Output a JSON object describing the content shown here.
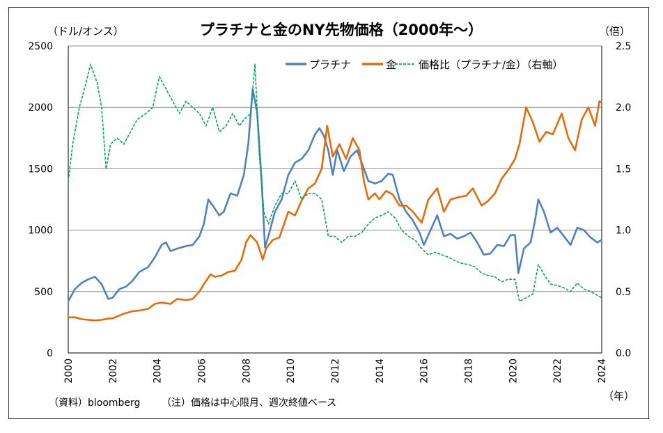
{
  "chart_data": {
    "type": "line",
    "title": "プラチナと金のNY先物価格（2000年～）",
    "left_unit": "（ドル/オンス）",
    "right_unit": "（倍）",
    "x_unit": "（年）",
    "source": "（資料）bloomberg",
    "note": "（注）価格は中心限月、週次終値ベース",
    "xlim": [
      2000,
      2024
    ],
    "x_ticks": [
      "2000",
      "2002",
      "2004",
      "2006",
      "2008",
      "2010",
      "2012",
      "2014",
      "2016",
      "2018",
      "2020",
      "2022",
      "2024"
    ],
    "ylim_left": [
      0,
      2500
    ],
    "y_ticks_left": [
      "0",
      "500",
      "1000",
      "1500",
      "2000",
      "2500"
    ],
    "ylim_right": [
      0,
      2.5
    ],
    "y_ticks_right": [
      "0.0",
      "0.5",
      "1.0",
      "1.5",
      "2.0",
      "2.5"
    ],
    "grid": "horizontal",
    "legend_position": "top-right",
    "series": [
      {
        "name": "プラチナ",
        "axis": "left",
        "color": "#4f81bd",
        "style": "solid",
        "points": [
          [
            2000.0,
            420
          ],
          [
            2000.3,
            520
          ],
          [
            2000.6,
            570
          ],
          [
            2000.9,
            600
          ],
          [
            2001.2,
            620
          ],
          [
            2001.5,
            560
          ],
          [
            2001.8,
            440
          ],
          [
            2002.0,
            450
          ],
          [
            2002.3,
            520
          ],
          [
            2002.6,
            540
          ],
          [
            2002.9,
            590
          ],
          [
            2003.2,
            660
          ],
          [
            2003.6,
            700
          ],
          [
            2003.9,
            780
          ],
          [
            2004.2,
            880
          ],
          [
            2004.4,
            900
          ],
          [
            2004.6,
            830
          ],
          [
            2004.9,
            850
          ],
          [
            2005.3,
            870
          ],
          [
            2005.6,
            880
          ],
          [
            2005.9,
            950
          ],
          [
            2006.1,
            1050
          ],
          [
            2006.3,
            1250
          ],
          [
            2006.5,
            1200
          ],
          [
            2006.8,
            1120
          ],
          [
            2007.0,
            1150
          ],
          [
            2007.3,
            1300
          ],
          [
            2007.6,
            1280
          ],
          [
            2007.9,
            1450
          ],
          [
            2008.1,
            1700
          ],
          [
            2008.3,
            2150
          ],
          [
            2008.5,
            1950
          ],
          [
            2008.7,
            1400
          ],
          [
            2008.85,
            860
          ],
          [
            2009.0,
            950
          ],
          [
            2009.3,
            1150
          ],
          [
            2009.6,
            1250
          ],
          [
            2009.9,
            1450
          ],
          [
            2010.2,
            1550
          ],
          [
            2010.5,
            1580
          ],
          [
            2010.8,
            1650
          ],
          [
            2011.1,
            1780
          ],
          [
            2011.3,
            1830
          ],
          [
            2011.5,
            1770
          ],
          [
            2011.7,
            1650
          ],
          [
            2011.9,
            1450
          ],
          [
            2012.1,
            1650
          ],
          [
            2012.4,
            1480
          ],
          [
            2012.7,
            1600
          ],
          [
            2013.0,
            1650
          ],
          [
            2013.3,
            1500
          ],
          [
            2013.5,
            1400
          ],
          [
            2013.8,
            1380
          ],
          [
            2014.1,
            1400
          ],
          [
            2014.4,
            1460
          ],
          [
            2014.6,
            1450
          ],
          [
            2014.9,
            1250
          ],
          [
            2015.2,
            1150
          ],
          [
            2015.5,
            1080
          ],
          [
            2015.8,
            980
          ],
          [
            2016.0,
            880
          ],
          [
            2016.3,
            1000
          ],
          [
            2016.6,
            1120
          ],
          [
            2016.9,
            950
          ],
          [
            2017.2,
            970
          ],
          [
            2017.5,
            930
          ],
          [
            2017.8,
            950
          ],
          [
            2018.1,
            980
          ],
          [
            2018.4,
            900
          ],
          [
            2018.7,
            800
          ],
          [
            2019.0,
            810
          ],
          [
            2019.3,
            880
          ],
          [
            2019.6,
            870
          ],
          [
            2019.9,
            960
          ],
          [
            2020.1,
            960
          ],
          [
            2020.25,
            650
          ],
          [
            2020.5,
            850
          ],
          [
            2020.8,
            900
          ],
          [
            2021.0,
            1080
          ],
          [
            2021.15,
            1250
          ],
          [
            2021.4,
            1150
          ],
          [
            2021.7,
            980
          ],
          [
            2022.0,
            1020
          ],
          [
            2022.3,
            950
          ],
          [
            2022.6,
            880
          ],
          [
            2022.9,
            1020
          ],
          [
            2023.2,
            1000
          ],
          [
            2023.5,
            940
          ],
          [
            2023.8,
            900
          ],
          [
            2024.0,
            920
          ]
        ]
      },
      {
        "name": "金",
        "axis": "left",
        "color": "#e36c09",
        "style": "solid",
        "points": [
          [
            2000.0,
            290
          ],
          [
            2000.3,
            290
          ],
          [
            2000.6,
            275
          ],
          [
            2000.9,
            270
          ],
          [
            2001.2,
            265
          ],
          [
            2001.5,
            270
          ],
          [
            2001.8,
            280
          ],
          [
            2002.0,
            282
          ],
          [
            2002.5,
            320
          ],
          [
            2002.9,
            340
          ],
          [
            2003.2,
            345
          ],
          [
            2003.6,
            360
          ],
          [
            2003.9,
            400
          ],
          [
            2004.2,
            410
          ],
          [
            2004.6,
            400
          ],
          [
            2004.9,
            440
          ],
          [
            2005.3,
            430
          ],
          [
            2005.6,
            440
          ],
          [
            2005.9,
            500
          ],
          [
            2006.1,
            560
          ],
          [
            2006.4,
            640
          ],
          [
            2006.6,
            620
          ],
          [
            2006.9,
            630
          ],
          [
            2007.2,
            660
          ],
          [
            2007.5,
            670
          ],
          [
            2007.8,
            760
          ],
          [
            2008.0,
            900
          ],
          [
            2008.2,
            960
          ],
          [
            2008.5,
            900
          ],
          [
            2008.75,
            760
          ],
          [
            2008.9,
            850
          ],
          [
            2009.2,
            920
          ],
          [
            2009.5,
            940
          ],
          [
            2009.9,
            1150
          ],
          [
            2010.2,
            1120
          ],
          [
            2010.5,
            1240
          ],
          [
            2010.8,
            1340
          ],
          [
            2011.1,
            1380
          ],
          [
            2011.4,
            1500
          ],
          [
            2011.65,
            1850
          ],
          [
            2011.9,
            1600
          ],
          [
            2012.2,
            1700
          ],
          [
            2012.5,
            1580
          ],
          [
            2012.8,
            1750
          ],
          [
            2013.1,
            1650
          ],
          [
            2013.3,
            1400
          ],
          [
            2013.5,
            1250
          ],
          [
            2013.8,
            1300
          ],
          [
            2014.0,
            1250
          ],
          [
            2014.3,
            1320
          ],
          [
            2014.6,
            1290
          ],
          [
            2014.9,
            1200
          ],
          [
            2015.2,
            1200
          ],
          [
            2015.5,
            1150
          ],
          [
            2015.9,
            1060
          ],
          [
            2016.2,
            1250
          ],
          [
            2016.6,
            1340
          ],
          [
            2016.9,
            1150
          ],
          [
            2017.2,
            1250
          ],
          [
            2017.6,
            1270
          ],
          [
            2017.9,
            1280
          ],
          [
            2018.2,
            1340
          ],
          [
            2018.6,
            1200
          ],
          [
            2018.9,
            1240
          ],
          [
            2019.2,
            1300
          ],
          [
            2019.5,
            1420
          ],
          [
            2019.8,
            1490
          ],
          [
            2020.1,
            1580
          ],
          [
            2020.3,
            1700
          ],
          [
            2020.6,
            2000
          ],
          [
            2020.9,
            1880
          ],
          [
            2021.2,
            1720
          ],
          [
            2021.5,
            1800
          ],
          [
            2021.8,
            1780
          ],
          [
            2022.2,
            1950
          ],
          [
            2022.5,
            1750
          ],
          [
            2022.8,
            1650
          ],
          [
            2023.1,
            1900
          ],
          [
            2023.4,
            2000
          ],
          [
            2023.7,
            1850
          ],
          [
            2023.9,
            2050
          ],
          [
            2024.0,
            2040
          ]
        ]
      },
      {
        "name": "価格比（プラチナ/金）（右軸）",
        "axis": "right",
        "color": "#00a651",
        "style": "dashed",
        "points": [
          [
            2000.0,
            1.4
          ],
          [
            2000.2,
            1.7
          ],
          [
            2000.5,
            2.0
          ],
          [
            2000.8,
            2.2
          ],
          [
            2001.0,
            2.35
          ],
          [
            2001.3,
            2.2
          ],
          [
            2001.5,
            2.0
          ],
          [
            2001.7,
            1.5
          ],
          [
            2001.9,
            1.7
          ],
          [
            2002.2,
            1.75
          ],
          [
            2002.5,
            1.7
          ],
          [
            2002.8,
            1.8
          ],
          [
            2003.1,
            1.9
          ],
          [
            2003.5,
            1.95
          ],
          [
            2003.8,
            2.0
          ],
          [
            2004.1,
            2.25
          ],
          [
            2004.4,
            2.15
          ],
          [
            2004.7,
            2.05
          ],
          [
            2005.0,
            1.95
          ],
          [
            2005.3,
            2.05
          ],
          [
            2005.6,
            2.0
          ],
          [
            2005.9,
            1.95
          ],
          [
            2006.2,
            1.85
          ],
          [
            2006.5,
            2.0
          ],
          [
            2006.8,
            1.8
          ],
          [
            2007.1,
            1.85
          ],
          [
            2007.4,
            1.95
          ],
          [
            2007.7,
            1.85
          ],
          [
            2007.9,
            1.9
          ],
          [
            2008.2,
            1.95
          ],
          [
            2008.4,
            2.35
          ],
          [
            2008.6,
            1.6
          ],
          [
            2008.8,
            1.15
          ],
          [
            2009.0,
            1.05
          ],
          [
            2009.3,
            1.2
          ],
          [
            2009.6,
            1.3
          ],
          [
            2009.9,
            1.3
          ],
          [
            2010.2,
            1.4
          ],
          [
            2010.5,
            1.25
          ],
          [
            2010.8,
            1.3
          ],
          [
            2011.1,
            1.3
          ],
          [
            2011.4,
            1.25
          ],
          [
            2011.7,
            0.95
          ],
          [
            2012.0,
            0.95
          ],
          [
            2012.3,
            0.9
          ],
          [
            2012.6,
            0.95
          ],
          [
            2012.9,
            0.95
          ],
          [
            2013.2,
            0.98
          ],
          [
            2013.5,
            1.05
          ],
          [
            2013.8,
            1.1
          ],
          [
            2014.1,
            1.12
          ],
          [
            2014.4,
            1.15
          ],
          [
            2014.7,
            1.1
          ],
          [
            2015.0,
            1.0
          ],
          [
            2015.3,
            0.95
          ],
          [
            2015.6,
            0.92
          ],
          [
            2015.9,
            0.85
          ],
          [
            2016.2,
            0.8
          ],
          [
            2016.5,
            0.82
          ],
          [
            2016.8,
            0.8
          ],
          [
            2017.1,
            0.78
          ],
          [
            2017.4,
            0.75
          ],
          [
            2017.7,
            0.73
          ],
          [
            2018.0,
            0.72
          ],
          [
            2018.3,
            0.7
          ],
          [
            2018.6,
            0.65
          ],
          [
            2018.9,
            0.63
          ],
          [
            2019.2,
            0.62
          ],
          [
            2019.5,
            0.58
          ],
          [
            2019.8,
            0.6
          ],
          [
            2020.1,
            0.6
          ],
          [
            2020.3,
            0.42
          ],
          [
            2020.6,
            0.45
          ],
          [
            2020.9,
            0.48
          ],
          [
            2021.15,
            0.72
          ],
          [
            2021.4,
            0.64
          ],
          [
            2021.7,
            0.56
          ],
          [
            2022.0,
            0.55
          ],
          [
            2022.3,
            0.53
          ],
          [
            2022.6,
            0.5
          ],
          [
            2022.9,
            0.57
          ],
          [
            2023.2,
            0.52
          ],
          [
            2023.5,
            0.5
          ],
          [
            2023.8,
            0.47
          ],
          [
            2024.0,
            0.45
          ]
        ]
      }
    ]
  }
}
